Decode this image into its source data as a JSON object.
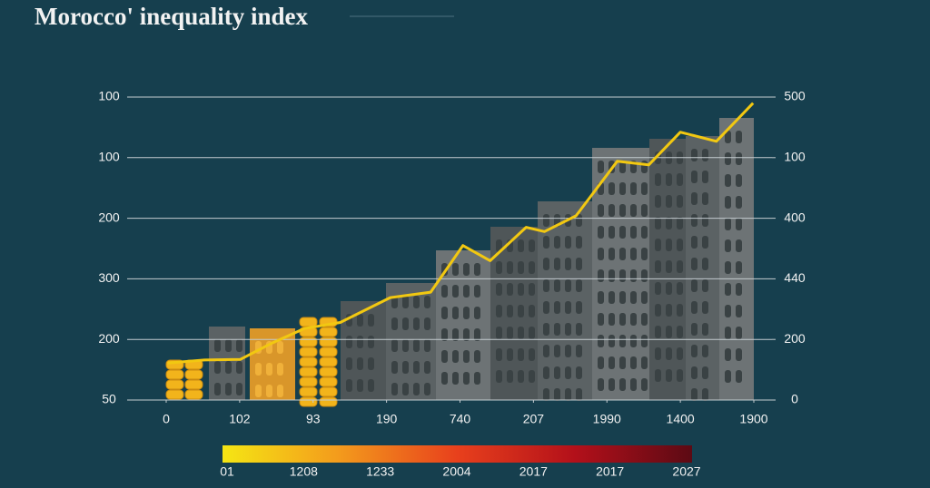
{
  "chart_data": {
    "type": "line",
    "title": "Morocco' inequality index",
    "xticks": [
      0,
      {
        "value": 1,
        "label": "102"
      },
      {
        "value": 2,
        "label": "93"
      },
      {
        "value": 3,
        "label": "190"
      },
      {
        "value": 4,
        "label": "740"
      },
      {
        "value": 5,
        "label": "207"
      },
      {
        "value": 6,
        "label": "1990"
      },
      {
        "value": 7,
        "label": "1400"
      },
      {
        "value": 8,
        "label": "1900"
      }
    ],
    "xlim": [
      0,
      8
    ],
    "ylim": [
      0,
      5
    ],
    "yticks": [
      {
        "value": 0,
        "label": "50"
      },
      {
        "value": 1,
        "label": "200"
      },
      {
        "value": 2,
        "label": "300"
      },
      {
        "value": 3,
        "label": "200"
      },
      {
        "value": 4,
        "label": "100"
      },
      {
        "value": 5,
        "label": "100"
      }
    ],
    "y2lim": [
      0,
      5
    ],
    "y2ticks": [
      0,
      {
        "value": 1,
        "label": "200"
      },
      {
        "value": 2,
        "label": "440"
      },
      {
        "value": 3,
        "label": "400"
      },
      {
        "value": 4,
        "label": "100"
      },
      {
        "value": 5,
        "label": "500"
      }
    ],
    "grid": true,
    "series": [
      {
        "color": "#f2c811",
        "x": [
          0.02,
          0.52,
          1.01,
          1.44,
          1.88,
          2.37,
          3.05,
          3.6,
          4.04,
          4.41,
          4.9,
          5.15,
          5.58,
          6.14,
          6.57,
          7.0,
          7.49,
          7.99
        ],
        "values": [
          0.61,
          0.66,
          0.67,
          0.94,
          1.18,
          1.28,
          1.69,
          1.78,
          2.55,
          2.3,
          2.85,
          2.78,
          3.04,
          3.94,
          3.88,
          4.42,
          4.27,
          4.9
        ]
      }
    ],
    "colorbar": {
      "colors": [
        "#f5e614",
        "#f39a1c",
        "#e8401c",
        "#b3101a",
        "#5c0a14"
      ],
      "labels": [
        "01",
        "1208",
        "1233",
        "2004",
        "2017",
        "2017",
        "2027"
      ]
    }
  }
}
